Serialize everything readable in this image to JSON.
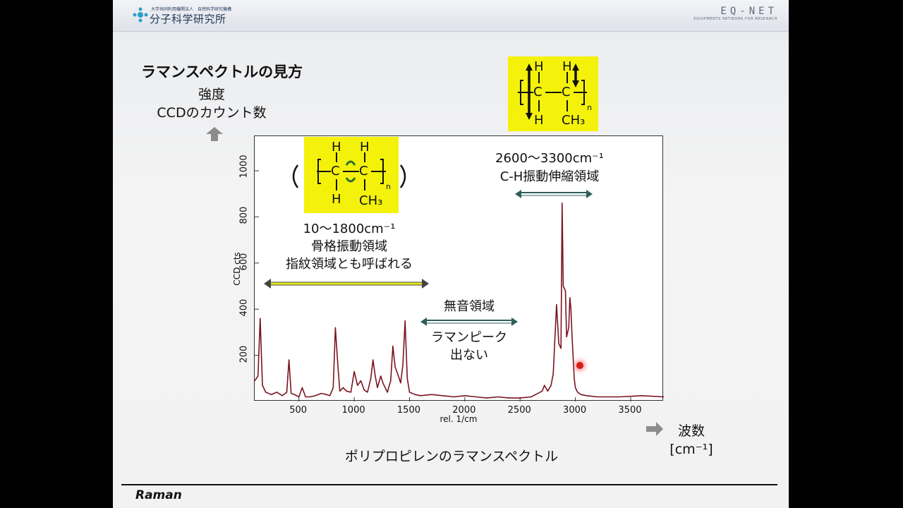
{
  "header": {
    "ims_small": "大学共同利用機関法人　自然科学研究機構",
    "ims_name": "分子科学研究所",
    "eqnet_name": "EQ-NET",
    "eqnet_sub": "EQUIPMENTS NETWORK FOR RESEARCH"
  },
  "slide": {
    "title": "ラマンスペクトルの見方",
    "intensity_line1": "強度",
    "intensity_line2": "CCDのカウント数",
    "wavenumber_line1": "波数",
    "wavenumber_line2": "[cm⁻¹]",
    "caption": "ポリプロピレンのラマンスペクトル",
    "footer": "Raman"
  },
  "annotations": {
    "fingerprint_range": "10～1800cm⁻¹",
    "fingerprint_line2": "骨格振動領域",
    "fingerprint_line3": "指紋領域とも呼ばれる",
    "silent_line1": "無音領域",
    "silent_line2": "ラマンピーク",
    "silent_line3": "出ない",
    "ch_range": "2600～3300cm⁻¹",
    "ch_label": "C-H振動伸縮領域"
  },
  "structure": {
    "h": "H",
    "c": "C",
    "ch3": "CH₃",
    "n": "n",
    "color": "#f4f20b"
  },
  "colors": {
    "spectrum": "#7a1420",
    "fingerprint_arrow": "#e6ec1a",
    "silent_arrow": "#2f5f5a"
  },
  "chart_data": {
    "type": "line",
    "title": "",
    "xlabel": "rel. 1/cm",
    "ylabel": "CCD cts",
    "xlim": [
      100,
      3800
    ],
    "ylim": [
      0,
      1150
    ],
    "x_ticks": [
      500,
      1000,
      1500,
      2000,
      2500,
      3000,
      3500
    ],
    "y_ticks": [
      200,
      400,
      600,
      800,
      1000
    ],
    "grid": false,
    "series": [
      {
        "x": [
          100,
          130,
          150,
          170,
          200,
          250,
          300,
          350,
          390,
          410,
          430,
          460,
          500,
          530,
          560,
          600,
          650,
          700,
          750,
          780,
          810,
          830,
          850,
          870,
          900,
          930,
          970,
          1000,
          1030,
          1060,
          1090,
          1120,
          1150,
          1170,
          1190,
          1210,
          1240,
          1260,
          1300,
          1330,
          1350,
          1370,
          1400,
          1420,
          1440,
          1460,
          1480,
          1500,
          1550,
          1600,
          1700,
          1800,
          1900,
          2000,
          2100,
          2200,
          2300,
          2400,
          2500,
          2600,
          2700,
          2720,
          2750,
          2780,
          2800,
          2830,
          2850,
          2870,
          2880,
          2890,
          2910,
          2920,
          2940,
          2950,
          2960,
          2970,
          2990,
          3000,
          3020,
          3050,
          3100,
          3200,
          3400,
          3600,
          3800
        ],
        "y": [
          90,
          110,
          360,
          70,
          40,
          30,
          40,
          25,
          40,
          180,
          35,
          30,
          20,
          60,
          20,
          20,
          25,
          35,
          30,
          25,
          60,
          320,
          170,
          45,
          60,
          45,
          40,
          130,
          70,
          90,
          50,
          40,
          100,
          180,
          110,
          60,
          110,
          80,
          40,
          90,
          240,
          150,
          110,
          80,
          160,
          350,
          100,
          40,
          30,
          25,
          30,
          25,
          20,
          25,
          20,
          15,
          20,
          15,
          15,
          20,
          45,
          70,
          45,
          70,
          120,
          420,
          250,
          230,
          860,
          500,
          480,
          280,
          320,
          450,
          400,
          280,
          100,
          60,
          40,
          30,
          25,
          20,
          20,
          25,
          20
        ]
      }
    ]
  }
}
